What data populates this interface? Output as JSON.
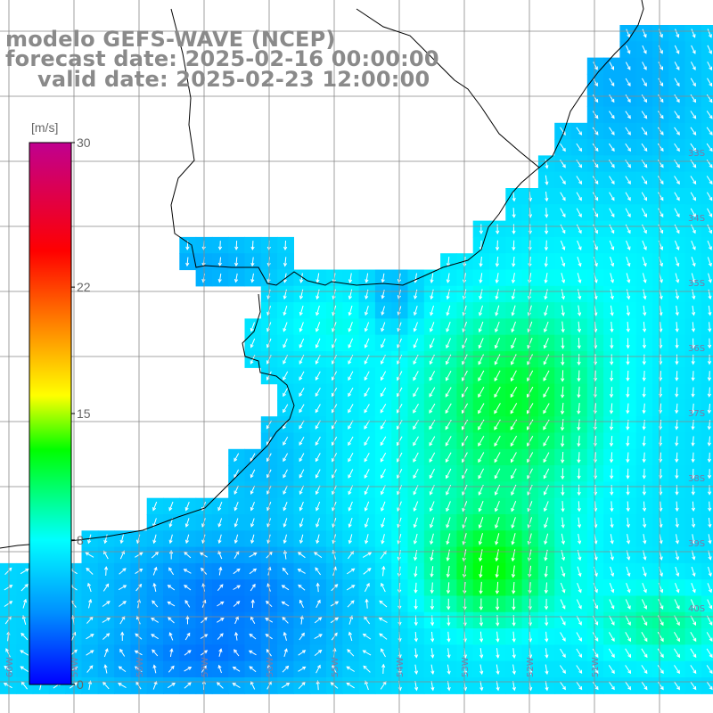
{
  "title": {
    "model": "modelo GEFS-WAVE (NCEP)",
    "forecast": "forecast date: 2025-02-16 00:00:00",
    "valid": "valid date: 2025-02-23 12:00:00"
  },
  "colorbar": {
    "unit": "[m/s]",
    "ticks": [
      "30",
      "22",
      "15",
      "8",
      "0"
    ],
    "tick_values": [
      30,
      22,
      15,
      8,
      0
    ],
    "range": [
      0,
      30
    ],
    "colors": [
      "#0000ff",
      "#0090ff",
      "#00ffff",
      "#00ff00",
      "#ffff00",
      "#ff8000",
      "#ff0000",
      "#c00090"
    ]
  },
  "map": {
    "variable": "wind speed",
    "land_color": "#ffffff",
    "coast_color": "#000000",
    "grid_color": "#888888",
    "arrow_color": "#ffffff",
    "lat_labels": [
      "33S",
      "34S",
      "35S",
      "36S",
      "37S",
      "38S",
      "39S",
      "40S"
    ],
    "lon_labels": [
      "60W",
      "59W",
      "58W",
      "57W",
      "56W",
      "55W",
      "54W",
      "53W",
      "52W",
      "51W"
    ]
  }
}
